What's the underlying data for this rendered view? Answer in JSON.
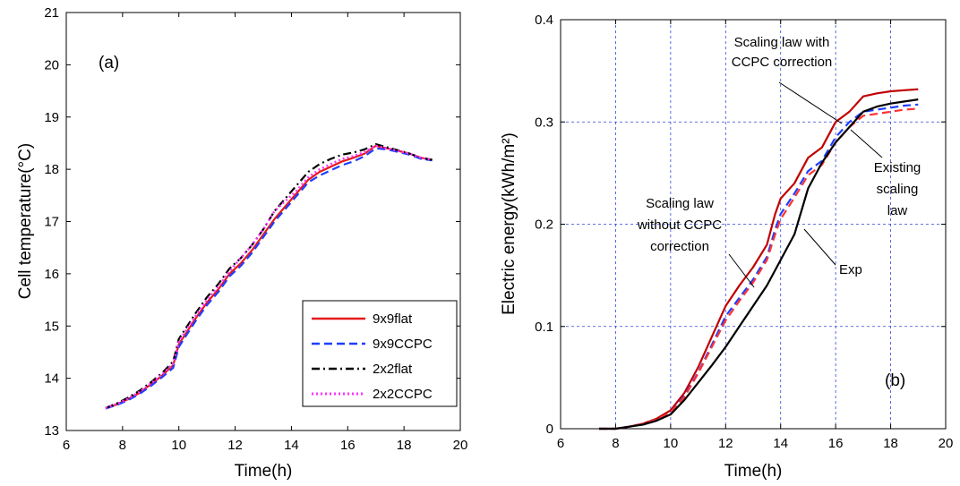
{
  "chart_data": [
    {
      "type": "line",
      "panel_label": "(a)",
      "xlabel": "Time(h)",
      "ylabel": "Cell temperature(°C)",
      "xlim": [
        6,
        20
      ],
      "ylim": [
        13,
        21
      ],
      "xticks": [
        "6",
        "8",
        "10",
        "12",
        "14",
        "16",
        "18",
        "20"
      ],
      "yticks": [
        "13",
        "14",
        "15",
        "16",
        "17",
        "18",
        "19",
        "20",
        "21"
      ],
      "grid": false,
      "legend_position": "bottom-right",
      "series": [
        {
          "name": "9x9flat",
          "color": "#e41a1c",
          "style": "solid",
          "x": [
            7.4,
            7.8,
            8.2,
            8.6,
            9.0,
            9.4,
            9.8,
            10.0,
            10.3,
            10.6,
            11.0,
            11.4,
            11.8,
            12.2,
            12.6,
            13.0,
            13.4,
            13.8,
            14.2,
            14.6,
            15.0,
            15.4,
            15.8,
            16.2,
            16.6,
            17.0,
            17.4,
            17.8,
            18.2,
            18.6,
            19.0
          ],
          "y": [
            13.42,
            13.5,
            13.6,
            13.72,
            13.88,
            14.05,
            14.25,
            14.65,
            14.9,
            15.15,
            15.45,
            15.7,
            16.0,
            16.2,
            16.45,
            16.75,
            17.05,
            17.3,
            17.55,
            17.8,
            17.95,
            18.05,
            18.15,
            18.22,
            18.3,
            18.45,
            18.4,
            18.35,
            18.3,
            18.22,
            18.18
          ]
        },
        {
          "name": "9x9CCPC",
          "color": "#1f3fff",
          "style": "dashed",
          "x": [
            7.4,
            7.8,
            8.2,
            8.6,
            9.0,
            9.4,
            9.8,
            10.0,
            10.3,
            10.6,
            11.0,
            11.4,
            11.8,
            12.2,
            12.6,
            13.0,
            13.4,
            13.8,
            14.2,
            14.6,
            15.0,
            15.4,
            15.8,
            16.2,
            16.6,
            17.0,
            17.4,
            17.8,
            18.2,
            18.6,
            19.0
          ],
          "y": [
            13.42,
            13.49,
            13.58,
            13.7,
            13.85,
            14.02,
            14.2,
            14.6,
            14.85,
            15.1,
            15.4,
            15.65,
            15.95,
            16.15,
            16.4,
            16.7,
            17.0,
            17.25,
            17.5,
            17.75,
            17.88,
            17.98,
            18.08,
            18.15,
            18.25,
            18.4,
            18.38,
            18.33,
            18.28,
            18.2,
            18.17
          ]
        },
        {
          "name": "2x2flat",
          "color": "#000000",
          "style": "dashdot",
          "x": [
            7.4,
            7.8,
            8.2,
            8.6,
            9.0,
            9.4,
            9.8,
            10.0,
            10.3,
            10.6,
            11.0,
            11.4,
            11.8,
            12.2,
            12.6,
            13.0,
            13.4,
            13.8,
            14.2,
            14.6,
            15.0,
            15.4,
            15.8,
            16.2,
            16.6,
            17.0,
            17.4,
            17.8,
            18.2,
            18.6,
            19.0
          ],
          "y": [
            13.43,
            13.52,
            13.63,
            13.76,
            13.92,
            14.1,
            14.32,
            14.75,
            15.0,
            15.25,
            15.55,
            15.8,
            16.1,
            16.3,
            16.55,
            16.85,
            17.2,
            17.45,
            17.7,
            17.95,
            18.1,
            18.2,
            18.28,
            18.32,
            18.38,
            18.48,
            18.42,
            18.36,
            18.3,
            18.22,
            18.18
          ]
        },
        {
          "name": "2x2CCPC",
          "color": "#ff33ff",
          "style": "dotted",
          "x": [
            7.4,
            7.8,
            8.2,
            8.6,
            9.0,
            9.4,
            9.8,
            10.0,
            10.3,
            10.6,
            11.0,
            11.4,
            11.8,
            12.2,
            12.6,
            13.0,
            13.4,
            13.8,
            14.2,
            14.6,
            15.0,
            15.4,
            15.8,
            16.2,
            16.6,
            17.0,
            17.4,
            17.8,
            18.2,
            18.6,
            19.0
          ],
          "y": [
            13.43,
            13.51,
            13.61,
            13.74,
            13.9,
            14.07,
            14.28,
            14.7,
            14.95,
            15.2,
            15.5,
            15.75,
            16.05,
            16.3,
            16.55,
            16.85,
            17.2,
            17.4,
            17.6,
            17.85,
            18.0,
            18.1,
            18.2,
            18.25,
            18.33,
            18.45,
            18.4,
            18.35,
            18.3,
            18.22,
            18.18
          ]
        }
      ]
    },
    {
      "type": "line",
      "panel_label": "(b)",
      "xlabel": "Time(h)",
      "ylabel": "Electric  energy(kWh/m²)",
      "xlim": [
        6,
        20
      ],
      "ylim": [
        0,
        0.4
      ],
      "xticks": [
        "6",
        "8",
        "10",
        "12",
        "14",
        "16",
        "18",
        "20"
      ],
      "yticks": [
        "0",
        "0.1",
        "0.2",
        "0.3",
        "0.4"
      ],
      "grid": true,
      "series": [
        {
          "color": "#c00000",
          "style": "solid",
          "x": [
            7.4,
            8.0,
            8.5,
            9.0,
            9.5,
            10.0,
            10.5,
            11.0,
            11.5,
            12.0,
            12.5,
            13.0,
            13.5,
            13.8,
            14.0,
            14.5,
            15.0,
            15.5,
            16.0,
            16.5,
            17.0,
            17.5,
            18.0,
            18.5,
            19.0
          ],
          "y": [
            0.0,
            0.0,
            0.002,
            0.005,
            0.01,
            0.018,
            0.035,
            0.06,
            0.09,
            0.12,
            0.14,
            0.158,
            0.18,
            0.21,
            0.225,
            0.24,
            0.265,
            0.275,
            0.3,
            0.31,
            0.325,
            0.328,
            0.33,
            0.331,
            0.332
          ]
        },
        {
          "color": "#1f3fff",
          "style": "dashed",
          "x": [
            7.4,
            8.0,
            8.5,
            9.0,
            9.5,
            10.0,
            10.5,
            11.0,
            11.5,
            12.0,
            12.5,
            13.0,
            13.5,
            13.8,
            14.0,
            14.5,
            15.0,
            15.5,
            16.0,
            16.5,
            17.0,
            17.5,
            18.0,
            18.5,
            19.0
          ],
          "y": [
            0.0,
            0.0,
            0.002,
            0.005,
            0.009,
            0.016,
            0.032,
            0.055,
            0.082,
            0.11,
            0.128,
            0.146,
            0.168,
            0.195,
            0.21,
            0.23,
            0.252,
            0.262,
            0.285,
            0.3,
            0.31,
            0.312,
            0.314,
            0.316,
            0.317
          ]
        },
        {
          "color": "#ff3333",
          "style": "dashed",
          "x": [
            7.4,
            8.0,
            8.5,
            9.0,
            9.5,
            10.0,
            10.5,
            11.0,
            11.5,
            12.0,
            12.5,
            13.0,
            13.5,
            13.8,
            14.0,
            14.5,
            15.0,
            15.5,
            16.0,
            16.5,
            17.0,
            17.5,
            18.0,
            18.5,
            19.0
          ],
          "y": [
            0.0,
            0.0,
            0.002,
            0.005,
            0.009,
            0.016,
            0.031,
            0.054,
            0.08,
            0.106,
            0.125,
            0.143,
            0.165,
            0.19,
            0.205,
            0.226,
            0.248,
            0.258,
            0.28,
            0.295,
            0.306,
            0.308,
            0.31,
            0.312,
            0.313
          ]
        },
        {
          "color": "#000000",
          "style": "solid",
          "x": [
            7.4,
            8.0,
            8.5,
            9.0,
            9.5,
            10.0,
            10.5,
            11.0,
            11.5,
            12.0,
            12.5,
            13.0,
            13.5,
            14.0,
            14.5,
            15.0,
            15.5,
            16.0,
            16.5,
            17.0,
            17.5,
            18.0,
            18.5,
            19.0
          ],
          "y": [
            0.0,
            0.0,
            0.002,
            0.004,
            0.008,
            0.014,
            0.028,
            0.045,
            0.062,
            0.08,
            0.1,
            0.12,
            0.14,
            0.165,
            0.19,
            0.235,
            0.26,
            0.28,
            0.295,
            0.31,
            0.315,
            0.318,
            0.32,
            0.322
          ]
        }
      ],
      "annotations": [
        {
          "lines": [
            "Scaling law with",
            "CCPC correction"
          ],
          "target": "red solid"
        },
        {
          "lines": [
            "Existing",
            "scaling",
            "law"
          ],
          "target": "blue dashed"
        },
        {
          "lines": [
            "Scaling law",
            "without CCPC",
            "correction"
          ],
          "target": "red dashed"
        },
        {
          "lines": [
            "Exp"
          ],
          "target": "black solid"
        }
      ]
    }
  ]
}
